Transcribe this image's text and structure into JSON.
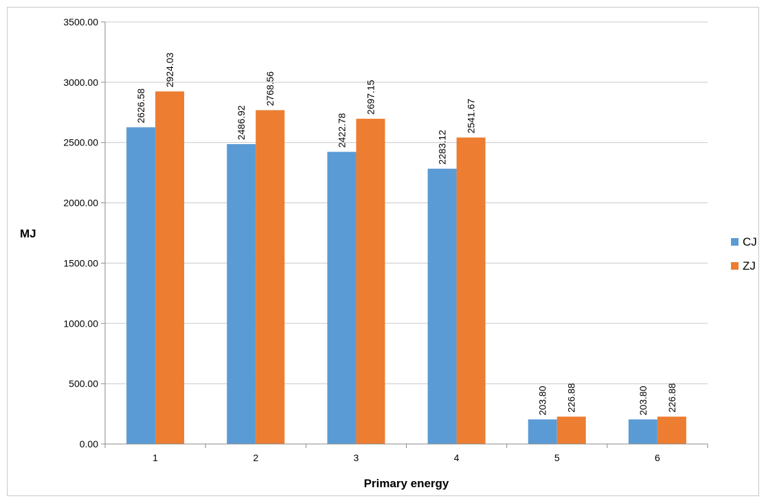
{
  "chart_data": {
    "type": "bar",
    "categories": [
      "1",
      "2",
      "3",
      "4",
      "5",
      "6"
    ],
    "series": [
      {
        "name": "CJ",
        "values": [
          2626.58,
          2486.92,
          2422.78,
          2283.12,
          203.8,
          203.8
        ],
        "color": "#5b9bd5",
        "labels": [
          "2626.58",
          "2486.92",
          "2422.78",
          "2283.12",
          "203.80",
          "203.80"
        ]
      },
      {
        "name": "ZJ",
        "values": [
          2924.03,
          2768.56,
          2697.15,
          2541.67,
          226.88,
          226.88
        ],
        "color": "#ed7d31",
        "labels": [
          "2924.03",
          "2768.56",
          "2697.15",
          "2541.67",
          "226.88",
          "226.88"
        ]
      }
    ],
    "xlabel": "Primary energy",
    "ylabel": "MJ",
    "ylim": [
      0,
      3500
    ],
    "yticks": [
      "0.00",
      "500.00",
      "1000.00",
      "1500.00",
      "2000.00",
      "2500.00",
      "3000.00",
      "3500.00"
    ],
    "grid": true,
    "legend_position": "right"
  }
}
